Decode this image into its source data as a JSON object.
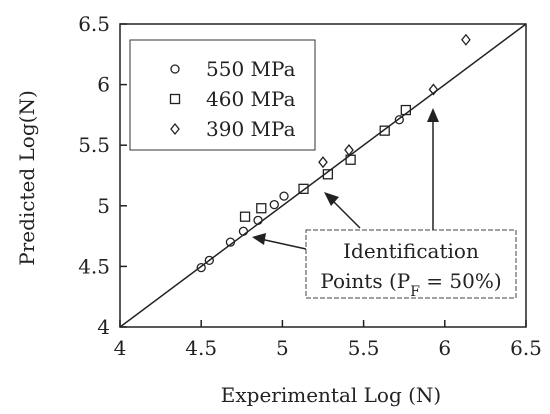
{
  "chart_data": {
    "type": "scatter",
    "xlabel": "Experimental Log (N)",
    "ylabel": "Predicted Log(N)",
    "xlim": [
      4,
      6.5
    ],
    "ylim": [
      4,
      6.5
    ],
    "x_ticks": [
      "4",
      "4.5",
      "5",
      "5.5",
      "6",
      "6.5"
    ],
    "y_ticks": [
      "4",
      "4.5",
      "5",
      "5.5",
      "6",
      "6.5"
    ],
    "grid": false,
    "legend_position": "top-left",
    "reference_line": {
      "from": [
        4,
        4
      ],
      "to": [
        6.5,
        6.5
      ]
    },
    "series": [
      {
        "name": "550 MPa",
        "marker": "circle",
        "points": [
          [
            4.5,
            4.49
          ],
          [
            4.55,
            4.55
          ],
          [
            4.68,
            4.7
          ],
          [
            4.76,
            4.79
          ],
          [
            4.85,
            4.88
          ],
          [
            4.95,
            5.01
          ],
          [
            5.01,
            5.08
          ],
          [
            5.72,
            5.71
          ]
        ]
      },
      {
        "name": "460 MPa",
        "marker": "square",
        "points": [
          [
            4.77,
            4.91
          ],
          [
            4.87,
            4.98
          ],
          [
            5.13,
            5.14
          ],
          [
            5.28,
            5.26
          ],
          [
            5.42,
            5.38
          ],
          [
            5.63,
            5.62
          ],
          [
            5.76,
            5.79
          ]
        ]
      },
      {
        "name": "390 MPa",
        "marker": "diamond",
        "points": [
          [
            5.25,
            5.36
          ],
          [
            5.41,
            5.46
          ],
          [
            5.93,
            5.96
          ],
          [
            6.13,
            6.37
          ]
        ]
      }
    ],
    "annotation": {
      "line1": "Identification",
      "line2_prefix": "Points (P",
      "line2_sub": "F",
      "line2_suffix": " = 50%)"
    }
  }
}
